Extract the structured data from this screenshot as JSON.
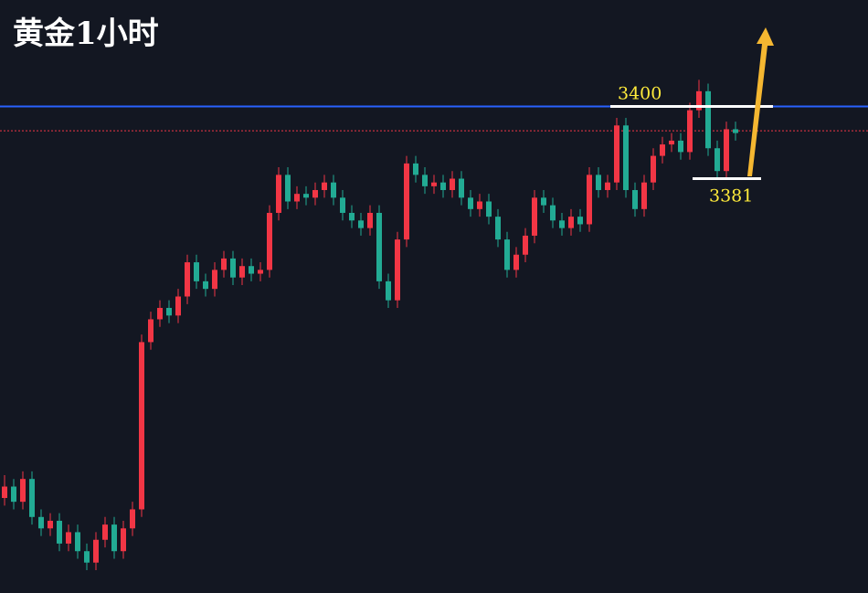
{
  "chart_data": {
    "type": "candlestick",
    "title": "黄金1小时",
    "ylim": [
      3272,
      3428
    ],
    "up_color": "#f23645",
    "down_color": "#22ab94",
    "open": [
      3297,
      3300,
      3296,
      3302,
      3292,
      3289,
      3291,
      3285,
      3288,
      3283,
      3280,
      3286,
      3290,
      3283,
      3289,
      3294,
      3338,
      3344,
      3347,
      3345,
      3350,
      3359,
      3354,
      3352,
      3357,
      3360,
      3355,
      3358,
      3356,
      3357,
      3372,
      3382,
      3375,
      3377,
      3376,
      3378,
      3380,
      3376,
      3372,
      3370,
      3368,
      3372,
      3354,
      3349,
      3365,
      3385,
      3382,
      3379,
      3380,
      3378,
      3381,
      3376,
      3373,
      3375,
      3371,
      3365,
      3357,
      3361,
      3366,
      3376,
      3374,
      3370,
      3368,
      3371,
      3369,
      3382,
      3378,
      3380,
      3395,
      3378,
      3373,
      3380,
      3387,
      3390,
      3391,
      3388,
      3399,
      3404,
      3389,
      3383,
      3394
    ],
    "high": [
      3303,
      3302,
      3304,
      3304,
      3294,
      3293,
      3293,
      3290,
      3290,
      3285,
      3288,
      3292,
      3292,
      3291,
      3296,
      3340,
      3346,
      3349,
      3349,
      3352,
      3361,
      3361,
      3356,
      3359,
      3362,
      3362,
      3360,
      3360,
      3359,
      3374,
      3384,
      3384,
      3379,
      3379,
      3380,
      3382,
      3382,
      3378,
      3374,
      3372,
      3374,
      3374,
      3356,
      3367,
      3387,
      3387,
      3384,
      3382,
      3382,
      3383,
      3383,
      3378,
      3377,
      3377,
      3373,
      3367,
      3363,
      3368,
      3378,
      3378,
      3376,
      3372,
      3373,
      3373,
      3384,
      3384,
      3382,
      3397,
      3397,
      3380,
      3382,
      3389,
      3392,
      3393,
      3393,
      3401,
      3407,
      3406,
      3391,
      3396,
      3396
    ],
    "low": [
      3295,
      3294,
      3294,
      3290,
      3287,
      3287,
      3283,
      3283,
      3281,
      3278,
      3278,
      3284,
      3281,
      3281,
      3287,
      3292,
      3336,
      3342,
      3343,
      3343,
      3348,
      3352,
      3350,
      3350,
      3355,
      3353,
      3353,
      3354,
      3354,
      3355,
      3370,
      3373,
      3373,
      3374,
      3374,
      3376,
      3374,
      3370,
      3368,
      3366,
      3366,
      3352,
      3347,
      3347,
      3363,
      3380,
      3377,
      3377,
      3376,
      3376,
      3374,
      3371,
      3371,
      3369,
      3363,
      3355,
      3355,
      3359,
      3364,
      3372,
      3368,
      3366,
      3366,
      3367,
      3367,
      3376,
      3376,
      3378,
      3376,
      3371,
      3371,
      3378,
      3385,
      3388,
      3386,
      3386,
      3397,
      3387,
      3381,
      3381,
      3391
    ],
    "close": [
      3300,
      3296,
      3302,
      3292,
      3289,
      3291,
      3285,
      3288,
      3283,
      3280,
      3286,
      3290,
      3283,
      3289,
      3294,
      3338,
      3344,
      3347,
      3345,
      3350,
      3359,
      3354,
      3352,
      3357,
      3360,
      3355,
      3358,
      3356,
      3357,
      3372,
      3382,
      3375,
      3377,
      3376,
      3378,
      3380,
      3376,
      3372,
      3370,
      3368,
      3372,
      3354,
      3349,
      3365,
      3385,
      3382,
      3379,
      3380,
      3378,
      3381,
      3376,
      3373,
      3375,
      3371,
      3365,
      3357,
      3361,
      3366,
      3376,
      3374,
      3370,
      3368,
      3371,
      3369,
      3382,
      3378,
      3380,
      3395,
      3378,
      3373,
      3380,
      3387,
      3390,
      3391,
      3388,
      3399,
      3404,
      3389,
      3383,
      3394,
      3393
    ],
    "hlines": [
      {
        "value": 3400,
        "color": "#2962ff",
        "style": "solid"
      },
      {
        "value": 3393.6,
        "color": "#f23645",
        "style": "dotted"
      }
    ],
    "annotations": [
      {
        "text": "3400",
        "value": 3400
      },
      {
        "text": "3381",
        "value": 3381
      }
    ]
  }
}
